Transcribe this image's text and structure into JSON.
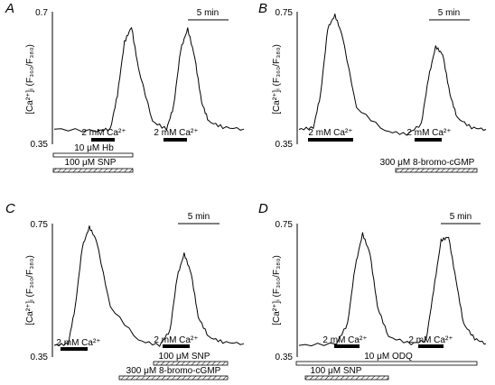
{
  "figure": {
    "panels": [
      {
        "letter": "A",
        "ylabel": "[Ca²⁺]ᵢ (F₃₆₀/F₃₈₀)",
        "ymax_label": "0.7",
        "ymin_label": "0.35",
        "scale_label": "5 min",
        "bar_labels": [
          "2 mM Ca²⁺",
          "2 mM Ca²⁺"
        ],
        "treatments": [
          "10 μM Hb",
          "100 μM SNP"
        ]
      },
      {
        "letter": "B",
        "ylabel": "[Ca²⁺]ᵢ (F₃₆₀/F₃₈₀)",
        "ymax_label": "0.75",
        "ymin_label": "0.35",
        "scale_label": "5 min",
        "bar_labels": [
          "2 mM Ca²⁺",
          "2 mM Ca²⁺"
        ],
        "treatments": [
          "300 μM 8-bromo-cGMP"
        ]
      },
      {
        "letter": "C",
        "ylabel": "[Ca²⁺]ᵢ (F₃₆₀/F₃₈₀)",
        "ymax_label": "0.75",
        "ymin_label": "0.35",
        "scale_label": "5 min",
        "bar_labels": [
          "2 mM Ca²⁺",
          "2 mM Ca²⁺"
        ],
        "treatments": [
          "100 μM SNP",
          "300 μM 8-bromo-cGMP"
        ]
      },
      {
        "letter": "D",
        "ylabel": "[Ca²⁺]ᵢ (F₃₆₀/F₃₈₀)",
        "ymax_label": "0.75",
        "ymin_label": "0.35",
        "scale_label": "5 min",
        "bar_labels": [
          "2 mM Ca²⁺",
          "2 mM Ca²⁺"
        ],
        "treatments": [
          "10 μM ODQ",
          "100 μM SNP"
        ]
      }
    ]
  },
  "chart_data": [
    {
      "panel": "A",
      "type": "line",
      "ylim": [
        0.35,
        0.7
      ],
      "x_unit": "min",
      "scale_bar_min": 5,
      "series": [
        {
          "x": [
            0,
            6,
            8,
            9,
            10,
            11,
            12,
            14,
            16,
            17,
            18,
            19,
            20,
            21,
            22,
            24,
            27
          ],
          "values": [
            0.39,
            0.385,
            0.39,
            0.48,
            0.62,
            0.66,
            0.55,
            0.41,
            0.39,
            0.45,
            0.6,
            0.655,
            0.58,
            0.46,
            0.41,
            0.395,
            0.39
          ]
        }
      ]
    },
    {
      "panel": "B",
      "type": "line",
      "ylim": [
        0.35,
        0.75
      ],
      "x_unit": "min",
      "scale_bar_min": 5,
      "series": [
        {
          "x": [
            0,
            2,
            3,
            4,
            5,
            6,
            8,
            12,
            15,
            17,
            18,
            19,
            20,
            21,
            22,
            24,
            26
          ],
          "values": [
            0.395,
            0.4,
            0.5,
            0.7,
            0.74,
            0.68,
            0.46,
            0.39,
            0.38,
            0.41,
            0.55,
            0.645,
            0.62,
            0.5,
            0.43,
            0.4,
            0.395
          ]
        }
      ]
    },
    {
      "panel": "C",
      "type": "line",
      "ylim": [
        0.35,
        0.75
      ],
      "x_unit": "min",
      "scale_bar_min": 5,
      "series": [
        {
          "x": [
            0,
            2,
            3,
            4,
            5,
            6,
            8,
            12,
            15,
            16.5,
            17.5,
            18.5,
            19.5,
            20.5,
            22,
            24,
            27
          ],
          "values": [
            0.385,
            0.39,
            0.5,
            0.68,
            0.74,
            0.7,
            0.5,
            0.4,
            0.385,
            0.43,
            0.59,
            0.66,
            0.6,
            0.47,
            0.41,
            0.395,
            0.39
          ]
        }
      ]
    },
    {
      "panel": "D",
      "type": "line",
      "ylim": [
        0.35,
        0.75
      ],
      "x_unit": "min",
      "scale_bar_min": 5,
      "series": [
        {
          "x": [
            0,
            5,
            6.5,
            7.5,
            8.5,
            9.5,
            10.5,
            12,
            15,
            17,
            18,
            19,
            20,
            21,
            22,
            23.5,
            25
          ],
          "values": [
            0.385,
            0.39,
            0.45,
            0.62,
            0.72,
            0.66,
            0.5,
            0.41,
            0.39,
            0.4,
            0.55,
            0.7,
            0.71,
            0.58,
            0.45,
            0.405,
            0.39
          ]
        }
      ]
    }
  ]
}
